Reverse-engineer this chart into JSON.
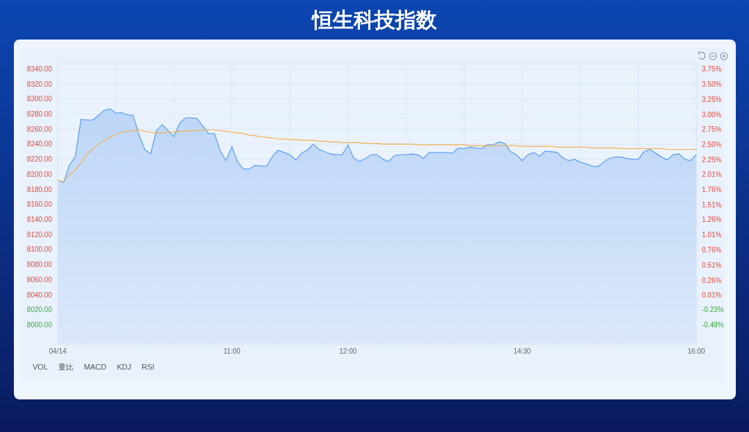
{
  "chart_data": {
    "type": "area",
    "title": "恒生科技指数",
    "categories": [
      "04/14",
      null,
      null,
      null,
      null,
      null,
      null,
      null,
      null,
      null,
      null,
      null,
      null,
      null,
      null,
      null,
      null,
      null,
      null,
      null,
      null,
      null,
      null,
      null,
      null,
      null,
      null,
      null,
      null,
      null,
      "11:00",
      null,
      null,
      null,
      null,
      null,
      null,
      null,
      null,
      null,
      null,
      null,
      null,
      null,
      null,
      null,
      null,
      null,
      null,
      null,
      "12:00",
      null,
      null,
      null,
      null,
      null,
      null,
      null,
      null,
      null,
      null,
      null,
      null,
      null,
      null,
      null,
      null,
      null,
      null,
      null,
      null,
      null,
      null,
      null,
      null,
      null,
      null,
      null,
      null,
      null,
      "14:30",
      null,
      null,
      null,
      null,
      null,
      null,
      null,
      null,
      null,
      null,
      null,
      null,
      null,
      null,
      null,
      null,
      null,
      null,
      null,
      null,
      null,
      null,
      null,
      null,
      null,
      null,
      null,
      null,
      null,
      "16:00"
    ],
    "series": [
      {
        "color": "#5fa1f0",
        "values": [
          8192,
          8189,
          8212,
          8223,
          8273,
          8272,
          8272,
          8278,
          8285,
          8287,
          8281,
          8282,
          8279,
          8278,
          8252,
          8233,
          8227,
          8258,
          8266,
          8258,
          8250,
          8268,
          8275,
          8275,
          8274,
          8264,
          8254,
          8254,
          8231,
          8218,
          8237,
          8216,
          8207,
          8207,
          8212,
          8211,
          8211,
          8224,
          8232,
          8229,
          8226,
          8219,
          8228,
          8232,
          8240,
          8233,
          8230,
          8227,
          8226,
          8226,
          8239,
          8221,
          8217,
          8221,
          8226,
          8226,
          8220,
          8217,
          8225,
          8226,
          8226,
          8227,
          8226,
          8221,
          8229,
          8229,
          8229,
          8229,
          8228,
          8235,
          8234,
          8236,
          8235,
          8234,
          8239,
          8239,
          8243,
          8241,
          8230,
          8226,
          8218,
          8226,
          8229,
          8224,
          8231,
          8230,
          8229,
          8222,
          8218,
          8220,
          8216,
          8214,
          8211,
          8210,
          8216,
          8221,
          8223,
          8223,
          8221,
          8220,
          8220,
          8230,
          8233,
          8228,
          8223,
          8219,
          8226,
          8227,
          8220,
          8218,
          8226
        ]
      },
      {
        "type": "line",
        "color": "#f2b04f",
        "values": [
          8192,
          8190,
          8199,
          8206,
          8215,
          8226,
          8234,
          8240,
          8245,
          8249,
          8253,
          8256,
          8257,
          8258,
          8259,
          8257,
          8256,
          8255,
          8255,
          8256,
          8256,
          8257,
          8257,
          8258,
          8258,
          8259,
          8259,
          8259,
          8258,
          8257,
          8256,
          8255,
          8254,
          8252,
          8251,
          8250,
          8249,
          8248,
          8247,
          8247,
          8246,
          8246,
          8245,
          8245,
          8245,
          8244,
          8244,
          8243,
          8243,
          8242,
          8242,
          8242,
          8242,
          8241,
          8241,
          8241,
          8240,
          8240,
          8240,
          8240,
          8240,
          8240,
          8239,
          8239,
          8239,
          8239,
          8239,
          8239,
          8239,
          8239,
          8239,
          8238,
          8238,
          8238,
          8238,
          8238,
          8238,
          8238,
          8238,
          8238,
          8237,
          8237,
          8237,
          8237,
          8237,
          8237,
          8236,
          8236,
          8236,
          8236,
          8236,
          8236,
          8235,
          8235,
          8235,
          8235,
          8235,
          8234,
          8234,
          8234,
          8234,
          8234,
          8234,
          8234,
          8234,
          8233,
          8233,
          8233,
          8233,
          8233,
          8233
        ]
      }
    ],
    "ylim": [
      7974,
      8347
    ],
    "yticks": [
      {
        "value": 8000,
        "label": "8000.00"
      },
      {
        "value": 8020,
        "label": "8020.00"
      },
      {
        "value": 8040,
        "label": "8040.00"
      },
      {
        "value": 8060,
        "label": "8060.00"
      },
      {
        "value": 8080,
        "label": "8080.00"
      },
      {
        "value": 8100,
        "label": "8100.00"
      },
      {
        "value": 8120,
        "label": "8120.00"
      },
      {
        "value": 8140,
        "label": "8140.00"
      },
      {
        "value": 8160,
        "label": "8160.00"
      },
      {
        "value": 8180,
        "label": "8180.00"
      },
      {
        "value": 8200,
        "label": "8200.00"
      },
      {
        "value": 8220,
        "label": "8220.00"
      },
      {
        "value": 8240,
        "label": "8240.00"
      },
      {
        "value": 8260,
        "label": "8260.00"
      },
      {
        "value": 8280,
        "label": "8280.00"
      },
      {
        "value": 8300,
        "label": "8300.00"
      },
      {
        "value": 8320,
        "label": "8320.00"
      },
      {
        "value": 8340,
        "label": "8340.00"
      }
    ],
    "y2lim": [
      -0.8,
      3.84
    ],
    "y2ticks": [
      {
        "value": -0.48,
        "label": "-0.48%"
      },
      {
        "value": -0.23,
        "label": "-0.23%"
      },
      {
        "value": 0.01,
        "label": "0.01%"
      },
      {
        "value": 0.26,
        "label": "0.26%"
      },
      {
        "value": 0.51,
        "label": "0.51%"
      },
      {
        "value": 0.76,
        "label": "0.76%"
      },
      {
        "value": 1.01,
        "label": "1.01%"
      },
      {
        "value": 1.26,
        "label": "1.26%"
      },
      {
        "value": 1.51,
        "label": "1.51%"
      },
      {
        "value": 1.76,
        "label": "1.76%"
      },
      {
        "value": 2.01,
        "label": "2.01%"
      },
      {
        "value": 2.25,
        "label": "2.25%"
      },
      {
        "value": 2.5,
        "label": "2.50%"
      },
      {
        "value": 2.75,
        "label": "2.75%"
      },
      {
        "value": 3.0,
        "label": "3.00%"
      },
      {
        "value": 3.25,
        "label": "3.25%"
      },
      {
        "value": 3.5,
        "label": "3.50%"
      },
      {
        "value": 3.75,
        "label": "3.75%"
      }
    ],
    "grid": true,
    "annotations": [
      "VOL",
      "量比",
      "MACD",
      "KDJ",
      "RSI"
    ]
  }
}
